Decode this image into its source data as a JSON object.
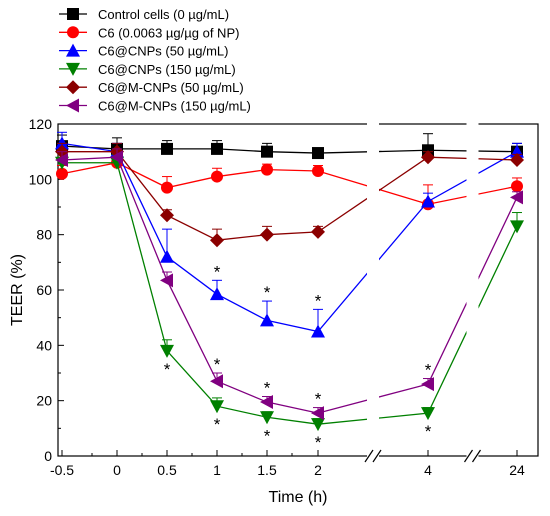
{
  "chart_data": {
    "type": "line",
    "title": "",
    "xlabel": "Time (h)",
    "ylabel": "TEER (%)",
    "x_categories": [
      "-0.5",
      "0",
      "0.5",
      "1",
      "1.5",
      "2",
      "4",
      "24"
    ],
    "axis_breaks": [
      "2-4",
      "4-24"
    ],
    "ylim": [
      0,
      120
    ],
    "y_ticks": [
      0,
      20,
      40,
      60,
      80,
      100,
      120
    ],
    "grid": false,
    "legend_position": "top-left",
    "significance_marker": "*",
    "series": [
      {
        "name": "Control cells (0 µg/mL)",
        "color": "#000000",
        "marker": "square",
        "x": [
          "-0.5",
          "0",
          "0.5",
          "1",
          "1.5",
          "2",
          "4",
          "24"
        ],
        "values": [
          112,
          111,
          111,
          111,
          110,
          109.5,
          110.5,
          110
        ],
        "errors": [
          4,
          4,
          3,
          3,
          3,
          1,
          6,
          3
        ],
        "significant": []
      },
      {
        "name": "C6 (0.0063 µg/µg of NP)",
        "color": "#ff0000",
        "marker": "circle",
        "x": [
          "-0.5",
          "0",
          "0.5",
          "1",
          "1.5",
          "2",
          "4",
          "24"
        ],
        "values": [
          102,
          106,
          97,
          101,
          103.5,
          103,
          91,
          97.5
        ],
        "errors": [
          3,
          3,
          4,
          3,
          2,
          2,
          7,
          3
        ],
        "significant": []
      },
      {
        "name": "C6@CNPs (50 µg/mL)",
        "color": "#0000ff",
        "marker": "triangle-up",
        "x": [
          "-0.5",
          "0",
          "0.5",
          "1",
          "1.5",
          "2",
          "4",
          "24"
        ],
        "values": [
          113,
          110,
          72,
          58.5,
          49,
          45,
          92,
          110
        ],
        "errors": [
          4,
          3,
          10,
          5,
          7,
          8,
          3,
          3
        ],
        "significant": [
          "1",
          "1.5",
          "2"
        ]
      },
      {
        "name": "C6@CNPs (150 µg/mL)",
        "color": "#008000",
        "marker": "triangle-down",
        "x": [
          "-0.5",
          "0",
          "0.5",
          "1",
          "1.5",
          "2",
          "4",
          "24"
        ],
        "values": [
          106,
          106,
          38,
          18,
          14,
          11.5,
          15.5,
          83
        ],
        "errors": [
          4,
          3,
          4,
          3,
          2,
          2,
          2,
          5
        ],
        "significant": [
          "0.5",
          "1",
          "1.5",
          "2",
          "4"
        ]
      },
      {
        "name": "C6@M-CNPs (50 µg/mL)",
        "color": "#8b0000",
        "marker": "diamond",
        "x": [
          "-0.5",
          "0",
          "0.5",
          "1",
          "1.5",
          "2",
          "4",
          "24"
        ],
        "values": [
          110,
          110,
          87,
          78,
          80,
          81,
          108,
          107
        ],
        "errors": [
          3,
          3,
          2,
          4,
          3,
          2,
          2,
          2
        ],
        "significant": []
      },
      {
        "name": "C6@M-CNPs (150 µg/mL)",
        "color": "#800080",
        "marker": "triangle-left",
        "x": [
          "-0.5",
          "0",
          "0.5",
          "1",
          "1.5",
          "2",
          "4",
          "24"
        ],
        "values": [
          107,
          108,
          63.5,
          27,
          19.5,
          15.5,
          26,
          93.5
        ],
        "errors": [
          3,
          3,
          3,
          3,
          2,
          2,
          2,
          2
        ],
        "significant": [
          "1",
          "1.5",
          "2",
          "4"
        ]
      }
    ]
  }
}
